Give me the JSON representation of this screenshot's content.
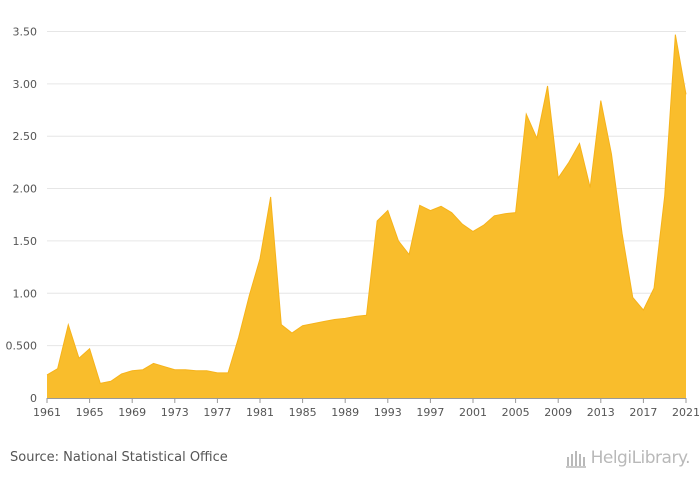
{
  "chart_data": {
    "type": "area",
    "title": "",
    "xlabel": "",
    "ylabel": "",
    "x": [
      1961,
      1962,
      1963,
      1964,
      1965,
      1966,
      1967,
      1968,
      1969,
      1970,
      1971,
      1972,
      1973,
      1974,
      1975,
      1976,
      1977,
      1978,
      1979,
      1980,
      1981,
      1982,
      1983,
      1984,
      1985,
      1986,
      1987,
      1988,
      1989,
      1990,
      1991,
      1992,
      1993,
      1994,
      1995,
      1996,
      1997,
      1998,
      1999,
      2000,
      2001,
      2002,
      2003,
      2004,
      2005,
      2006,
      2007,
      2008,
      2009,
      2010,
      2011,
      2012,
      2013,
      2014,
      2015,
      2016,
      2017,
      2018,
      2019,
      2020,
      2021
    ],
    "series": [
      {
        "name": "value",
        "values": [
          0.22,
          0.28,
          0.7,
          0.38,
          0.47,
          0.14,
          0.16,
          0.23,
          0.26,
          0.27,
          0.33,
          0.3,
          0.27,
          0.27,
          0.26,
          0.26,
          0.24,
          0.24,
          0.58,
          0.98,
          1.33,
          1.92,
          0.7,
          0.62,
          0.69,
          0.71,
          0.73,
          0.75,
          0.76,
          0.78,
          0.79,
          1.69,
          1.79,
          1.5,
          1.37,
          1.84,
          1.79,
          1.83,
          1.77,
          1.66,
          1.59,
          1.65,
          1.74,
          1.76,
          1.77,
          2.71,
          2.48,
          2.98,
          2.1,
          2.25,
          2.43,
          2.01,
          2.84,
          2.33,
          1.57,
          0.96,
          0.84,
          1.05,
          1.93,
          3.47,
          2.9
        ]
      }
    ],
    "xticks": [
      "1961",
      "1965",
      "1969",
      "1973",
      "1977",
      "1981",
      "1985",
      "1989",
      "1993",
      "1997",
      "2001",
      "2005",
      "2009",
      "2013",
      "2017",
      "2021"
    ],
    "yticks": [
      "0",
      "0.500",
      "1.00",
      "1.50",
      "2.00",
      "2.50",
      "3.00",
      "3.50"
    ],
    "ylim": [
      0,
      3.6
    ],
    "grid": true,
    "fill_color": "#f9bd2c",
    "line_color": "#f6b31b"
  },
  "footer": {
    "source": "Source: National Statistical Office",
    "logo_text": "HelgiLibrary."
  }
}
